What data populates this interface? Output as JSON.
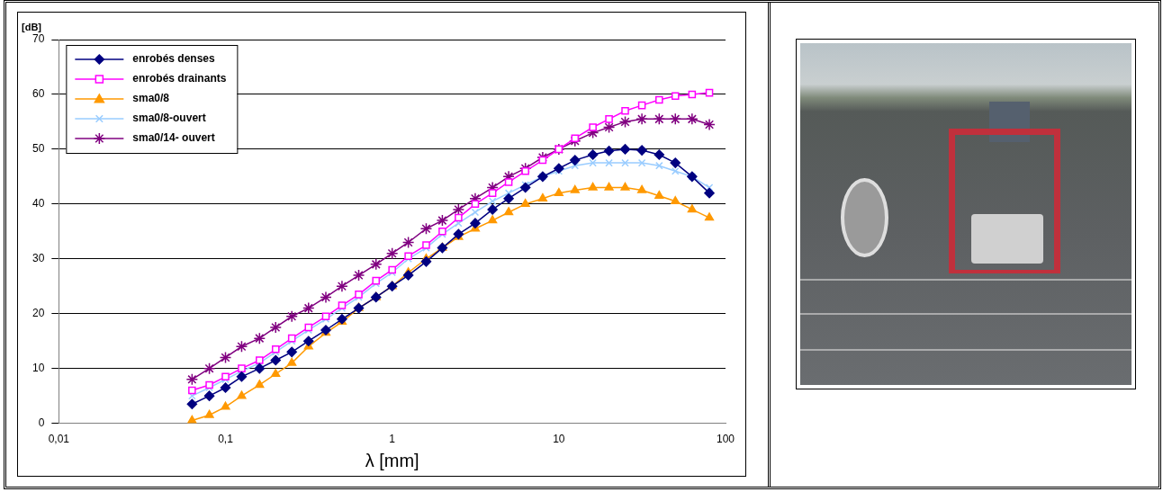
{
  "chart_data": {
    "type": "line",
    "x_label": "λ [mm]",
    "y_label": "[dB]",
    "log": "x",
    "grid": "y",
    "legend": "top-left",
    "xlim": [
      0.01,
      100
    ],
    "xticks": [
      {
        "value": 0.01,
        "label": "0,01"
      },
      {
        "value": 0.1,
        "label": "0,1"
      },
      1,
      10,
      100
    ],
    "ylim": [
      0,
      70
    ],
    "yticks": [
      0,
      10,
      20,
      30,
      40,
      50,
      60,
      70
    ],
    "x": [
      0.063,
      0.08,
      0.1,
      0.125,
      0.16,
      0.2,
      0.25,
      0.315,
      0.4,
      0.5,
      0.63,
      0.8,
      1,
      1.25,
      1.6,
      2,
      2.5,
      3.15,
      4,
      5,
      6.3,
      8,
      10,
      12.5,
      16,
      20,
      25,
      31.5,
      40,
      50,
      63,
      80
    ],
    "series": [
      {
        "name": "enrobés denses",
        "color": "#000080",
        "marker": "diamond",
        "values": [
          3.5,
          5,
          6.5,
          8.5,
          10,
          11.5,
          13,
          15,
          17,
          19,
          21,
          23,
          25,
          27,
          29.5,
          32,
          34.5,
          36.5,
          39,
          41,
          43,
          45,
          46.5,
          48,
          49,
          49.7,
          50,
          49.8,
          49,
          47.5,
          45,
          42
        ]
      },
      {
        "name": "enrobés drainants",
        "color": "#ff00ff",
        "marker": "square",
        "values": [
          6,
          7,
          8.5,
          10,
          11.5,
          13.5,
          15.5,
          17.5,
          19.5,
          21.5,
          23.5,
          26,
          28,
          30.5,
          32.5,
          35,
          37.5,
          40,
          42,
          44,
          46,
          48,
          50,
          52,
          54,
          55.5,
          57,
          58,
          59,
          59.7,
          60,
          60.3
        ]
      },
      {
        "name": "sma0/8",
        "color": "#ff9900",
        "marker": "triangle",
        "values": [
          0.5,
          1.5,
          3,
          5,
          7,
          9,
          11,
          14,
          16.5,
          18.5,
          21,
          23,
          25,
          27.5,
          30,
          32,
          34,
          35.5,
          37,
          38.5,
          40,
          41,
          42,
          42.5,
          43,
          43,
          43,
          42.5,
          41.5,
          40.5,
          39,
          37.5
        ]
      },
      {
        "name": "sma0/8-ouvert",
        "color": "#99ccff",
        "marker": "x",
        "values": [
          5,
          6.5,
          8,
          9.5,
          11,
          13,
          15,
          17,
          19,
          21,
          23,
          25.5,
          27.5,
          30,
          32,
          34.5,
          36.5,
          38.5,
          40.5,
          42,
          43.5,
          45,
          46,
          47,
          47.5,
          47.5,
          47.5,
          47.5,
          47,
          46,
          45,
          43
        ]
      },
      {
        "name": "sma0/14- ouvert",
        "color": "#800080",
        "marker": "star",
        "values": [
          8,
          10,
          12,
          14,
          15.5,
          17.5,
          19.5,
          21,
          23,
          25,
          27,
          29,
          31,
          33,
          35.5,
          37,
          39,
          41,
          43,
          45,
          46.5,
          48.5,
          50,
          51.5,
          53,
          54,
          55,
          55.5,
          55.5,
          55.5,
          55.5,
          54.5
        ]
      }
    ]
  }
}
